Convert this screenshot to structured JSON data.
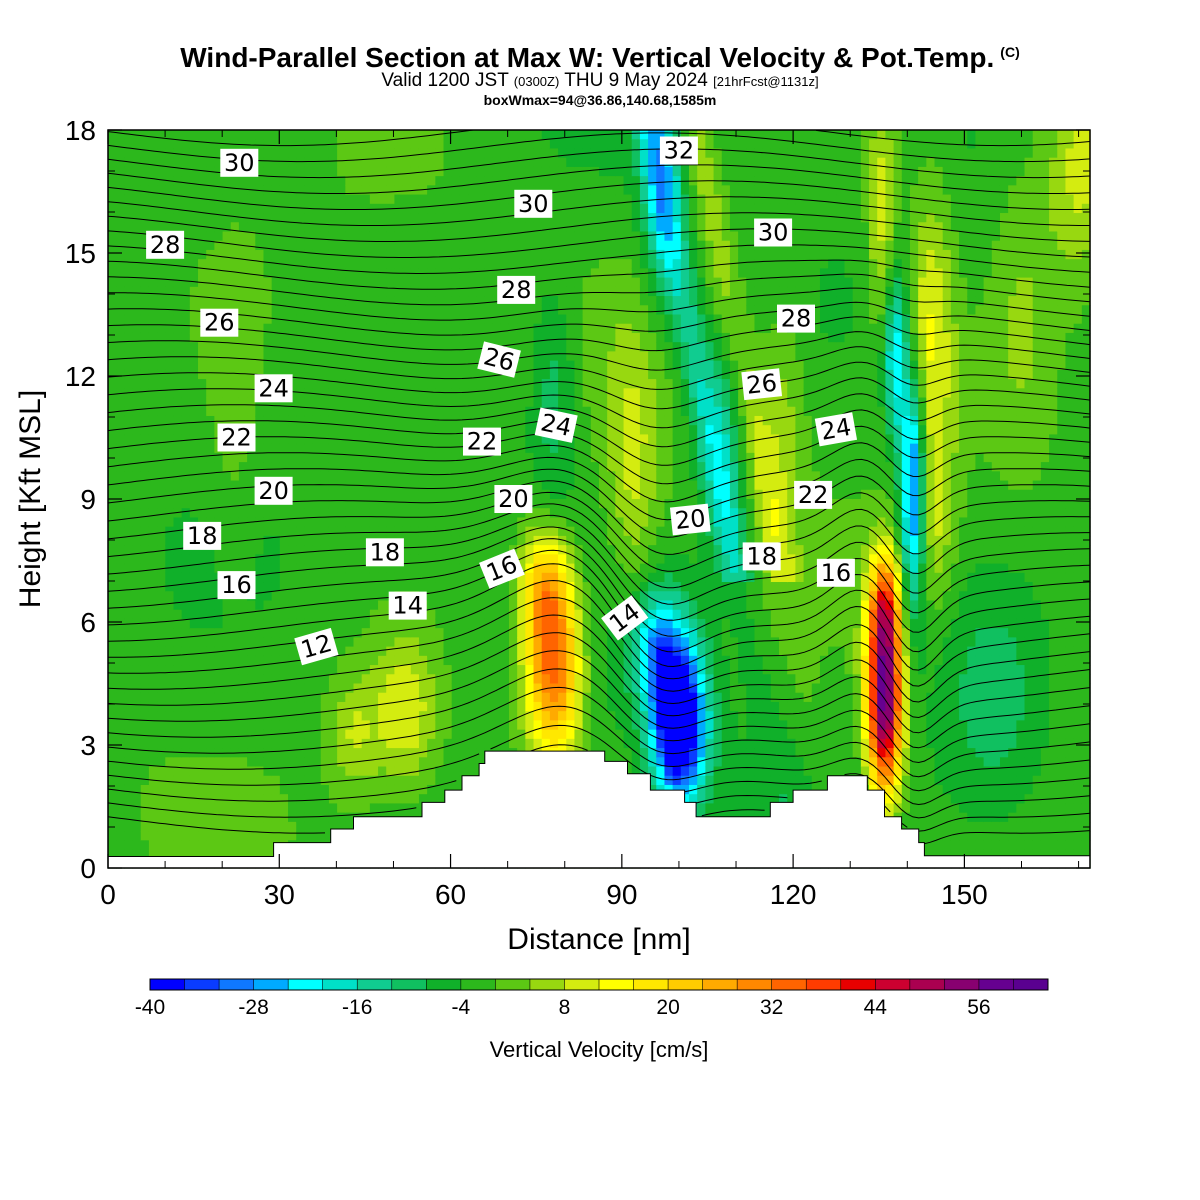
{
  "header": {
    "title": "Wind-Parallel Section at Max W: Vertical Velocity & Pot.Temp.",
    "copyright": "(C)",
    "valid_prefix": "Valid 1200 JST",
    "valid_utc": "(0300Z)",
    "valid_date": "THU 9 May 2024",
    "forecast_info": "[21hrFcst@1131z]",
    "box_info": "boxWmax=94@36.86,140.68,1585m"
  },
  "chart_data": {
    "type": "heatmap",
    "xlabel": "Distance [nm]",
    "ylabel": "Height [Kft MSL]",
    "xlim": [
      0,
      172
    ],
    "ylim": [
      0,
      18
    ],
    "x_ticks": [
      0,
      30,
      60,
      90,
      120,
      150
    ],
    "y_ticks": [
      0,
      3,
      6,
      9,
      12,
      15,
      18
    ],
    "grid": false,
    "colorbar": {
      "title": "Vertical Velocity [cm/s]",
      "min": -40,
      "max": 64,
      "step": 4,
      "tick_values": [
        -40,
        -28,
        -16,
        -4,
        8,
        20,
        32,
        44,
        56
      ],
      "tick_labels": [
        "-40",
        "-28",
        "-16",
        "-4",
        "8",
        "20",
        "32",
        "44",
        "56"
      ],
      "colors": [
        "#0000ff",
        "#0a3cff",
        "#0f78ff",
        "#00aaff",
        "#00ffff",
        "#00e0c8",
        "#10cc90",
        "#10c060",
        "#10b02a",
        "#2cb81c",
        "#5cc814",
        "#98d810",
        "#d4ec10",
        "#ffff00",
        "#ffe800",
        "#ffcc00",
        "#ffaa00",
        "#ff8800",
        "#ff6400",
        "#ff3c00",
        "#e80000",
        "#cc0030",
        "#aa0050",
        "#880070",
        "#660090",
        "#5a0090"
      ]
    },
    "terrain_kft": [
      [
        0,
        0.28
      ],
      [
        29,
        0.28
      ],
      [
        29,
        0.62
      ],
      [
        39,
        0.62
      ],
      [
        39,
        0.95
      ],
      [
        43,
        0.95
      ],
      [
        43,
        1.25
      ],
      [
        55,
        1.25
      ],
      [
        55,
        1.6
      ],
      [
        59,
        1.6
      ],
      [
        59,
        1.9
      ],
      [
        62,
        1.9
      ],
      [
        62,
        2.25
      ],
      [
        65,
        2.25
      ],
      [
        65,
        2.55
      ],
      [
        66,
        2.55
      ],
      [
        66,
        2.85
      ],
      [
        87,
        2.85
      ],
      [
        87,
        2.6
      ],
      [
        91,
        2.6
      ],
      [
        91,
        2.3
      ],
      [
        95,
        2.3
      ],
      [
        95,
        1.9
      ],
      [
        101,
        1.9
      ],
      [
        101,
        1.6
      ],
      [
        103,
        1.6
      ],
      [
        103,
        1.25
      ],
      [
        116,
        1.25
      ],
      [
        116,
        1.6
      ],
      [
        120,
        1.6
      ],
      [
        120,
        1.9
      ],
      [
        126,
        1.9
      ],
      [
        126,
        2.25
      ],
      [
        133,
        2.25
      ],
      [
        133,
        1.9
      ],
      [
        136,
        1.9
      ],
      [
        136,
        1.25
      ],
      [
        139,
        1.25
      ],
      [
        139,
        0.95
      ],
      [
        142,
        0.95
      ],
      [
        142,
        0.62
      ],
      [
        143,
        0.62
      ],
      [
        143,
        0.3
      ],
      [
        172,
        0.3
      ]
    ],
    "vertical_velocity_features": [
      {
        "x": 78,
        "z": 5.0,
        "sx": 3.5,
        "sz": 1.7,
        "w": 38
      },
      {
        "x": 76,
        "z": 6.9,
        "sx": 3.0,
        "sz": 1.0,
        "w": 16
      },
      {
        "x": 100,
        "z": 3.5,
        "sx": 3.3,
        "sz": 1.4,
        "w": -48
      },
      {
        "x": 96,
        "z": 5.4,
        "sx": 3.2,
        "sz": 1.0,
        "w": -20
      },
      {
        "x": 136,
        "z": 4.0,
        "sx": 2.2,
        "sz": 1.6,
        "w": 60
      },
      {
        "x": 136,
        "z": 6.4,
        "sx": 2.0,
        "sz": 1.0,
        "w": 28
      },
      {
        "x": 141,
        "z": 9.2,
        "sx": 1.6,
        "sz": 2.0,
        "w": -36
      },
      {
        "x": 138,
        "z": 12.5,
        "sx": 1.4,
        "sz": 1.4,
        "w": -22
      },
      {
        "x": 135.5,
        "z": 16.0,
        "sx": 1.8,
        "sz": 2.0,
        "w": 13
      },
      {
        "x": 144,
        "z": 13.0,
        "sx": 3.0,
        "sz": 2.6,
        "w": 15
      },
      {
        "x": 144,
        "z": 8.5,
        "sx": 3.0,
        "sz": 1.5,
        "w": 9
      },
      {
        "x": 52,
        "z": 3.8,
        "sx": 4.0,
        "sz": 1.3,
        "w": 13
      },
      {
        "x": 43,
        "z": 3.2,
        "sx": 3.0,
        "sz": 1.0,
        "w": 9
      },
      {
        "x": 92,
        "z": 9.5,
        "sx": 3.2,
        "sz": 2.4,
        "w": 10
      },
      {
        "x": 108,
        "z": 10.5,
        "sx": 3.0,
        "sz": 2.0,
        "w": -10
      },
      {
        "x": 118,
        "z": 11.0,
        "sx": 3.0,
        "sz": 2.0,
        "w": 8
      },
      {
        "x": 97,
        "z": 16.5,
        "sx": 2.4,
        "sz": 2.0,
        "w": -14
      },
      {
        "x": 170,
        "z": 17.0,
        "sx": 4.0,
        "sz": 2.0,
        "w": 12
      },
      {
        "x": 160,
        "z": 14.0,
        "sx": 4.0,
        "sz": 3.0,
        "w": 6
      },
      {
        "x": 78,
        "z": 11.5,
        "sx": 3.0,
        "sz": 2.0,
        "w": -10
      },
      {
        "x": 155,
        "z": 4.0,
        "sx": 6.0,
        "sz": 2.0,
        "w": -8
      },
      {
        "x": 22,
        "z": 11.0,
        "sx": 3.0,
        "sz": 2.5,
        "w": 4
      }
    ],
    "potential_temperature_labels": [
      {
        "label": "30",
        "x": 23,
        "z": 17.2,
        "angle": 0
      },
      {
        "label": "28",
        "x": 10,
        "z": 15.2,
        "angle": 0
      },
      {
        "label": "26",
        "x": 19.5,
        "z": 13.3,
        "angle": 0
      },
      {
        "label": "24",
        "x": 29,
        "z": 11.7,
        "angle": 0
      },
      {
        "label": "22",
        "x": 22.5,
        "z": 10.5,
        "angle": 0
      },
      {
        "label": "20",
        "x": 29,
        "z": 9.2,
        "angle": 0
      },
      {
        "label": "18",
        "x": 16.5,
        "z": 8.1,
        "angle": 0
      },
      {
        "label": "16",
        "x": 22.5,
        "z": 6.9,
        "angle": 0
      },
      {
        "label": "12",
        "x": 36.5,
        "z": 5.4,
        "angle": -16
      },
      {
        "label": "14",
        "x": 52.5,
        "z": 6.4,
        "angle": 0
      },
      {
        "label": "18",
        "x": 48.5,
        "z": 7.7,
        "angle": 0
      },
      {
        "label": "16",
        "x": 69,
        "z": 7.3,
        "angle": -22
      },
      {
        "label": "20",
        "x": 71,
        "z": 9.0,
        "angle": 0
      },
      {
        "label": "22",
        "x": 65.5,
        "z": 10.4,
        "angle": 0
      },
      {
        "label": "24",
        "x": 78.5,
        "z": 10.8,
        "angle": 12
      },
      {
        "label": "26",
        "x": 68.5,
        "z": 12.4,
        "angle": 14
      },
      {
        "label": "28",
        "x": 71.5,
        "z": 14.1,
        "angle": 0
      },
      {
        "label": "30",
        "x": 74.5,
        "z": 16.2,
        "angle": 0
      },
      {
        "label": "14",
        "x": 90.5,
        "z": 6.1,
        "angle": -37
      },
      {
        "label": "32",
        "x": 100,
        "z": 17.5,
        "angle": 0
      },
      {
        "label": "30",
        "x": 116.5,
        "z": 15.5,
        "angle": 0
      },
      {
        "label": "28",
        "x": 120.5,
        "z": 13.4,
        "angle": 0
      },
      {
        "label": "26",
        "x": 114.5,
        "z": 11.8,
        "angle": -6
      },
      {
        "label": "24",
        "x": 127.5,
        "z": 10.7,
        "angle": -10
      },
      {
        "label": "22",
        "x": 123.5,
        "z": 9.1,
        "angle": 0
      },
      {
        "label": "20",
        "x": 102,
        "z": 8.5,
        "angle": -6
      },
      {
        "label": "18",
        "x": 114.5,
        "z": 7.6,
        "angle": 0
      },
      {
        "label": "16",
        "x": 127.5,
        "z": 7.2,
        "angle": 0
      }
    ]
  }
}
